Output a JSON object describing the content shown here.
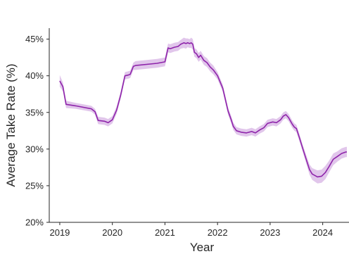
{
  "chart_data": {
    "type": "line",
    "title": "",
    "xlabel": "Year",
    "ylabel": "Average Take Rate (%)",
    "xlim": [
      2018.8,
      2024.5
    ],
    "ylim": [
      20,
      46.5
    ],
    "x_ticks": [
      2019,
      2020,
      2021,
      2022,
      2023,
      2024
    ],
    "x_tick_labels": [
      "2019",
      "2020",
      "2021",
      "2022",
      "2023",
      "2024"
    ],
    "y_ticks": [
      20,
      25,
      30,
      35,
      40,
      45
    ],
    "y_tick_labels": [
      "20%",
      "25%",
      "30%",
      "35%",
      "40%",
      "45%"
    ],
    "grid": false,
    "legend": "none",
    "colors": {
      "line": "#8e24aa",
      "band": "#d9b8e6",
      "axis": "#262626"
    },
    "series": [
      {
        "x": [
          2019.0,
          2019.06,
          2019.12,
          2019.3,
          2019.6,
          2019.67,
          2019.73,
          2019.85,
          2019.92,
          2020.0,
          2020.08,
          2020.16,
          2020.24,
          2020.3,
          2020.34,
          2020.4,
          2020.44,
          2020.85,
          2021.0,
          2021.06,
          2021.1,
          2021.18,
          2021.25,
          2021.3,
          2021.36,
          2021.4,
          2021.43,
          2021.47,
          2021.5,
          2021.53,
          2021.56,
          2021.6,
          2021.64,
          2021.68,
          2021.74,
          2021.8,
          2021.86,
          2021.92,
          2022.0,
          2022.1,
          2022.2,
          2022.26,
          2022.3,
          2022.36,
          2022.45,
          2022.55,
          2022.65,
          2022.72,
          2022.8,
          2022.88,
          2022.95,
          2023.05,
          2023.12,
          2023.2,
          2023.25,
          2023.3,
          2023.35,
          2023.42,
          2023.46,
          2023.5,
          2023.56,
          2023.62,
          2023.7,
          2023.75,
          2023.8,
          2023.9,
          2023.98,
          2024.05,
          2024.12,
          2024.2,
          2024.28,
          2024.36,
          2024.44,
          2024.46
        ],
        "y": [
          39.3,
          38.5,
          36.1,
          35.9,
          35.5,
          35.1,
          33.9,
          33.8,
          33.6,
          34.0,
          35.3,
          37.4,
          40.0,
          40.1,
          40.2,
          41.3,
          41.4,
          41.7,
          41.9,
          43.8,
          43.7,
          43.9,
          44.0,
          44.3,
          44.5,
          44.4,
          44.5,
          44.4,
          44.5,
          44.3,
          43.2,
          43.0,
          42.5,
          42.8,
          42.1,
          41.8,
          41.2,
          40.8,
          40.0,
          38.3,
          35.2,
          34.0,
          33.1,
          32.5,
          32.3,
          32.2,
          32.4,
          32.2,
          32.6,
          32.9,
          33.5,
          33.7,
          33.6,
          34.0,
          34.5,
          34.7,
          34.3,
          33.4,
          33.0,
          32.8,
          31.5,
          30.1,
          28.3,
          27.2,
          26.6,
          26.2,
          26.3,
          26.8,
          27.6,
          28.6,
          29.0,
          29.4,
          29.6,
          29.6
        ],
        "band": [
          0.8,
          0.6,
          0.5,
          0.4,
          0.4,
          0.4,
          0.5,
          0.5,
          0.5,
          0.5,
          0.5,
          0.5,
          0.5,
          0.5,
          0.5,
          0.5,
          0.6,
          0.6,
          0.6,
          0.6,
          0.6,
          0.6,
          0.6,
          0.6,
          0.7,
          0.7,
          0.6,
          0.6,
          0.7,
          0.7,
          0.6,
          0.6,
          0.6,
          0.6,
          0.6,
          0.6,
          0.6,
          0.6,
          0.5,
          0.5,
          0.5,
          0.5,
          0.5,
          0.5,
          0.5,
          0.5,
          0.5,
          0.5,
          0.5,
          0.5,
          0.5,
          0.5,
          0.5,
          0.5,
          0.5,
          0.5,
          0.5,
          0.5,
          0.5,
          0.5,
          0.5,
          0.5,
          0.6,
          0.7,
          0.8,
          0.9,
          0.9,
          0.9,
          0.8,
          0.8,
          0.7,
          0.7,
          0.7,
          0.7
        ]
      }
    ]
  }
}
